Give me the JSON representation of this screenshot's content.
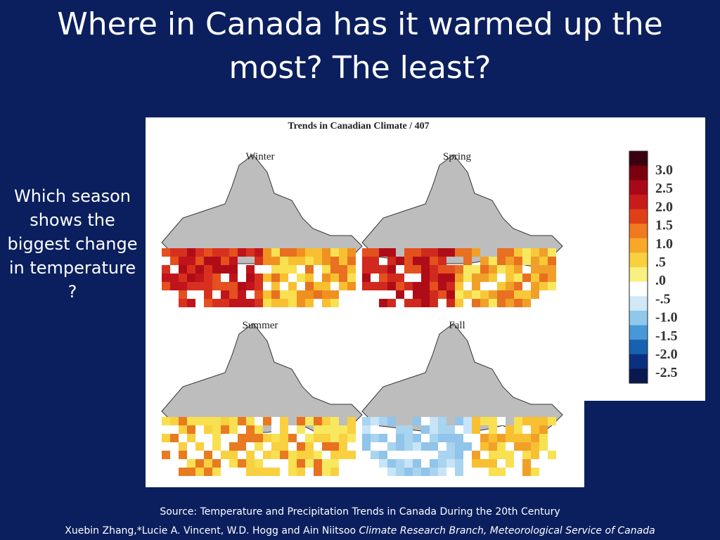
{
  "title": "Where in Canada has it warmed up the most? The least?",
  "question": "Which season shows the biggest change in temperature ?",
  "figure": {
    "header": "Trends in Canadian Climate / 407",
    "panels": [
      "Winter",
      "Spring",
      "Summer",
      "Fall"
    ],
    "legend_labels": [
      "3.0",
      "2.5",
      "2.0",
      "1.5",
      "1.0",
      ".5",
      ".0",
      "-.5",
      "-1.0",
      "-1.5",
      "-2.0",
      "-2.5"
    ]
  },
  "source": {
    "line1": "Source: Temperature and Precipitation Trends in Canada During the 20th Century",
    "authors": "Xuebin Zhang,*Lucie A. Vincent, W.D. Hogg and Ain Niitsoo",
    "affiliation": "Climate Research Branch, Meteorological Service of Canada"
  }
}
